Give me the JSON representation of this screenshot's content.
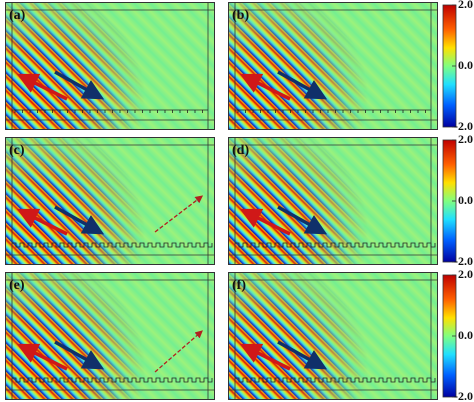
{
  "panels": [
    {
      "label": "(a)"
    },
    {
      "label": "(b)"
    },
    {
      "label": "(c)"
    },
    {
      "label": "(d)"
    },
    {
      "label": "(e)"
    },
    {
      "label": "(f)"
    }
  ],
  "colorbars": [
    {
      "ticks": [
        "2.0",
        "0.0",
        "-2.0"
      ]
    },
    {
      "ticks": [
        "2.0",
        "0.0",
        "-2.0"
      ]
    },
    {
      "ticks": [
        "2.0",
        "0.0",
        "-2.0"
      ]
    }
  ]
}
